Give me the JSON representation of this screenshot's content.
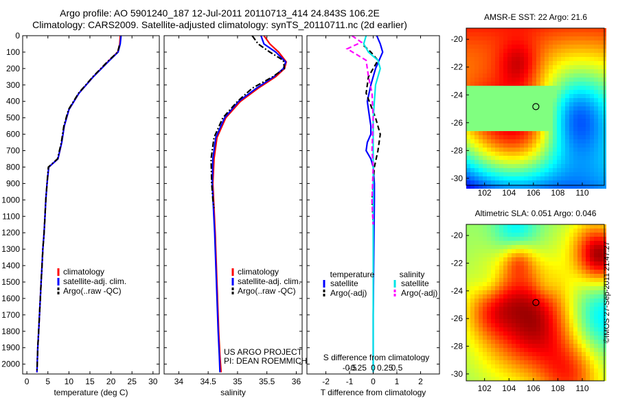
{
  "header": {
    "title_line1": "Argo profile: AO 5901240_187 12-Jul-2011 20110713_414 24.843S 106.2E",
    "title_line2": "Climatology: CARS2009. Satellite-adjusted climatology: synTS_20110711.nc (2d earlier)"
  },
  "colors": {
    "climatology": "#ff0000",
    "satellite": "#0000ff",
    "argo": "#000000",
    "sal_satellite": "#00e5e5",
    "sal_argo": "#ff00ff"
  },
  "depth_ticks": [
    0,
    100,
    200,
    300,
    400,
    500,
    600,
    700,
    800,
    900,
    1000,
    1100,
    1200,
    1300,
    1400,
    1500,
    1600,
    1700,
    1800,
    1900,
    2000
  ],
  "chart_data": [
    {
      "type": "line",
      "id": "temperature",
      "xlabel": "temperature (deg C)",
      "xlim": [
        -1,
        31.5
      ],
      "ylim": [
        2060,
        0
      ],
      "xticks": [
        0,
        5,
        10,
        15,
        20,
        25,
        30
      ],
      "xtick_labels": [
        "0",
        "5",
        "10",
        "15",
        "20",
        "25",
        "30"
      ],
      "legend": {
        "position": "lower-right",
        "entries": [
          "climatology",
          "satellite-adj. clim.",
          "Argo(..raw -QC)"
        ]
      },
      "series": [
        {
          "name": "climatology",
          "color": "#ff0000",
          "style": "solid",
          "x": [
            22.2,
            22.1,
            21.6,
            19.6,
            15.8,
            12.4,
            10.0,
            8.9,
            8.3,
            7.4,
            5.2,
            4.8,
            4.5,
            4.3,
            4.1,
            3.8,
            3.6,
            3.4,
            3.2,
            3.0,
            2.8,
            2.6,
            2.4
          ],
          "y": [
            0,
            50,
            100,
            150,
            250,
            350,
            450,
            550,
            650,
            750,
            800,
            900,
            1000,
            1100,
            1200,
            1300,
            1400,
            1500,
            1600,
            1700,
            1800,
            1900,
            2050
          ]
        },
        {
          "name": "satellite-adj. clim.",
          "color": "#0000ff",
          "style": "solid",
          "x": [
            22.4,
            22.2,
            21.7,
            19.7,
            15.8,
            12.4,
            10.0,
            8.9,
            8.3,
            7.4,
            5.2,
            4.8,
            4.5,
            4.3,
            4.1,
            3.8,
            3.6,
            3.4,
            3.2,
            3.0,
            2.8,
            2.6,
            2.4
          ],
          "y": [
            0,
            50,
            100,
            150,
            250,
            350,
            450,
            550,
            650,
            750,
            800,
            900,
            1000,
            1100,
            1200,
            1300,
            1400,
            1500,
            1600,
            1700,
            1800,
            1900,
            2050
          ]
        },
        {
          "name": "Argo(..raw -QC)",
          "color": "#000000",
          "style": "dashdot",
          "x": [
            22.0,
            21.6,
            19.5,
            15.7,
            12.3,
            9.9,
            8.8,
            8.2,
            7.3,
            5.1,
            4.8,
            4.5,
            4.3,
            4.1,
            3.8,
            3.6,
            3.4,
            3.2,
            3.0,
            2.8,
            2.6,
            2.4
          ],
          "y": [
            60,
            100,
            150,
            250,
            350,
            450,
            550,
            650,
            750,
            800,
            900,
            1000,
            1100,
            1200,
            1300,
            1400,
            1500,
            1600,
            1700,
            1800,
            1900,
            2050
          ]
        }
      ]
    },
    {
      "type": "line",
      "id": "salinity",
      "xlabel": "salinity",
      "xlim": [
        33.75,
        36.1
      ],
      "ylim": [
        2060,
        0
      ],
      "xticks": [
        34,
        34.5,
        35,
        35.5,
        36
      ],
      "xtick_labels": [
        "34",
        "34.5",
        "35",
        "35.5",
        "36"
      ],
      "legend": {
        "position": "lower-right",
        "entries": [
          "climatology",
          "satellite-adj. clim.",
          "Argo(..raw -QC)"
        ]
      },
      "annotation": [
        "US ARGO PROJECT",
        "PI: DEAN ROEMMICH"
      ],
      "series": [
        {
          "name": "climatology",
          "color": "#ff0000",
          "style": "solid",
          "x": [
            35.45,
            35.55,
            35.7,
            35.83,
            35.8,
            35.65,
            35.35,
            35.05,
            34.8,
            34.65,
            34.6,
            34.58,
            34.6,
            34.62,
            34.64,
            34.66,
            34.68,
            34.7,
            34.72
          ],
          "y": [
            0,
            50,
            100,
            160,
            200,
            250,
            320,
            400,
            500,
            620,
            750,
            900,
            1050,
            1200,
            1400,
            1600,
            1800,
            1950,
            2050
          ]
        },
        {
          "name": "satellite-adj. clim.",
          "color": "#0000ff",
          "style": "solid",
          "x": [
            35.4,
            35.45,
            35.65,
            35.82,
            35.78,
            35.62,
            35.32,
            35.02,
            34.78,
            34.63,
            34.58,
            34.57,
            34.59,
            34.61,
            34.63,
            34.65,
            34.67,
            34.69,
            34.7
          ],
          "y": [
            0,
            50,
            100,
            160,
            200,
            250,
            320,
            400,
            500,
            620,
            750,
            900,
            1050,
            1200,
            1400,
            1600,
            1800,
            1950,
            2050
          ]
        },
        {
          "name": "Argo(..raw -QC)",
          "color": "#000000",
          "style": "dashdot",
          "x": [
            35.25,
            35.35,
            35.55,
            35.78,
            35.8,
            35.6,
            35.25,
            35.0,
            34.75,
            34.6,
            34.55,
            34.56,
            34.58,
            34.6
          ],
          "y": [
            0,
            50,
            100,
            150,
            200,
            250,
            320,
            400,
            500,
            620,
            750,
            900,
            1000,
            1050
          ]
        }
      ]
    },
    {
      "type": "line",
      "id": "differences",
      "xlabel": "T difference from climatology",
      "xlabel_top": "S difference from climatology",
      "xlim": [
        -2.8,
        2.8
      ],
      "ylim": [
        2060,
        0
      ],
      "xticks": [
        -2,
        -1,
        0,
        1,
        2
      ],
      "xtick_labels": [
        "-2",
        "-1",
        "0",
        "1",
        "2"
      ],
      "sal_ticks": [
        "-0.5",
        "-0.25",
        "0",
        "0.25",
        "0.5"
      ],
      "legend": {
        "position": "lower",
        "temperature_header": "temperature",
        "salinity_header": "salinity",
        "entries": [
          "satellite",
          "Argo(-adj)",
          "satellite",
          "Argo(-adj)"
        ]
      },
      "series": [
        {
          "name": "satellite",
          "quantity": "temperature",
          "color": "#0000ff",
          "style": "solid",
          "x": [
            0.15,
            0.3,
            0.4,
            0.25,
            0.1,
            -0.1,
            -0.25,
            -0.2,
            -0.15,
            -0.1,
            -0.1,
            -0.25,
            -0.3,
            -0.1,
            0.0,
            0.05,
            0.05,
            0.02,
            0.0,
            0.0
          ],
          "y": [
            0,
            50,
            100,
            150,
            200,
            300,
            400,
            450,
            500,
            550,
            600,
            650,
            700,
            750,
            800,
            900,
            1000,
            1400,
            1700,
            2050
          ]
        },
        {
          "name": "Argo(-adj)",
          "quantity": "temperature",
          "color": "#000000",
          "style": "dashed",
          "x": [
            -0.4,
            -0.1,
            0.2,
            -0.2,
            -0.3,
            0.1,
            0.3,
            0.2,
            0.05,
            -0.05,
            0.0
          ],
          "y": [
            60,
            100,
            150,
            250,
            350,
            500,
            600,
            700,
            800,
            1000,
            1150
          ]
        },
        {
          "name": "satellite",
          "quantity": "salinity",
          "color": "#00e5e5",
          "style": "solid",
          "x": [
            -0.3,
            -0.4,
            -0.2,
            0.2,
            0.3,
            0.1,
            0.0,
            0.0,
            0.0,
            0.0,
            0.0
          ],
          "y": [
            0,
            50,
            100,
            150,
            200,
            300,
            500,
            800,
            1200,
            1700,
            2050
          ]
        },
        {
          "name": "Argo(-adj)",
          "quantity": "salinity",
          "color": "#ff00ff",
          "style": "dashed",
          "x": [
            -0.9,
            -0.5,
            -1.1,
            -0.3,
            -0.2,
            -0.05,
            0.0,
            -0.05,
            0.0,
            -0.05,
            0.0
          ],
          "y": [
            0,
            40,
            80,
            150,
            250,
            350,
            500,
            700,
            800,
            1000,
            1150
          ]
        }
      ]
    },
    {
      "type": "heatmap",
      "id": "sst_map",
      "title": "AMSR-E SST: 22 Argo: 21.6",
      "xlim": [
        100.5,
        111.8
      ],
      "ylim": [
        -30.5,
        -19.2
      ],
      "xticks": [
        102,
        104,
        106,
        108,
        110
      ],
      "yticks": [
        -20,
        -22,
        -24,
        -26,
        -28,
        -30
      ],
      "marker": {
        "lon": 106.2,
        "lat": -24.843
      }
    },
    {
      "type": "heatmap",
      "id": "sla_map",
      "title": "Altimetric SLA: 0.051 Argo: 0.046",
      "xlim": [
        100.5,
        111.8
      ],
      "ylim": [
        -30.5,
        -19.2
      ],
      "xticks": [
        102,
        104,
        106,
        108,
        110
      ],
      "yticks": [
        -20,
        -22,
        -24,
        -26,
        -28,
        -30
      ],
      "marker": {
        "lon": 106.2,
        "lat": -24.843
      }
    }
  ],
  "footer": {
    "imos_stamp": "©IMOS 27-Sep-2011 21:47:27"
  }
}
